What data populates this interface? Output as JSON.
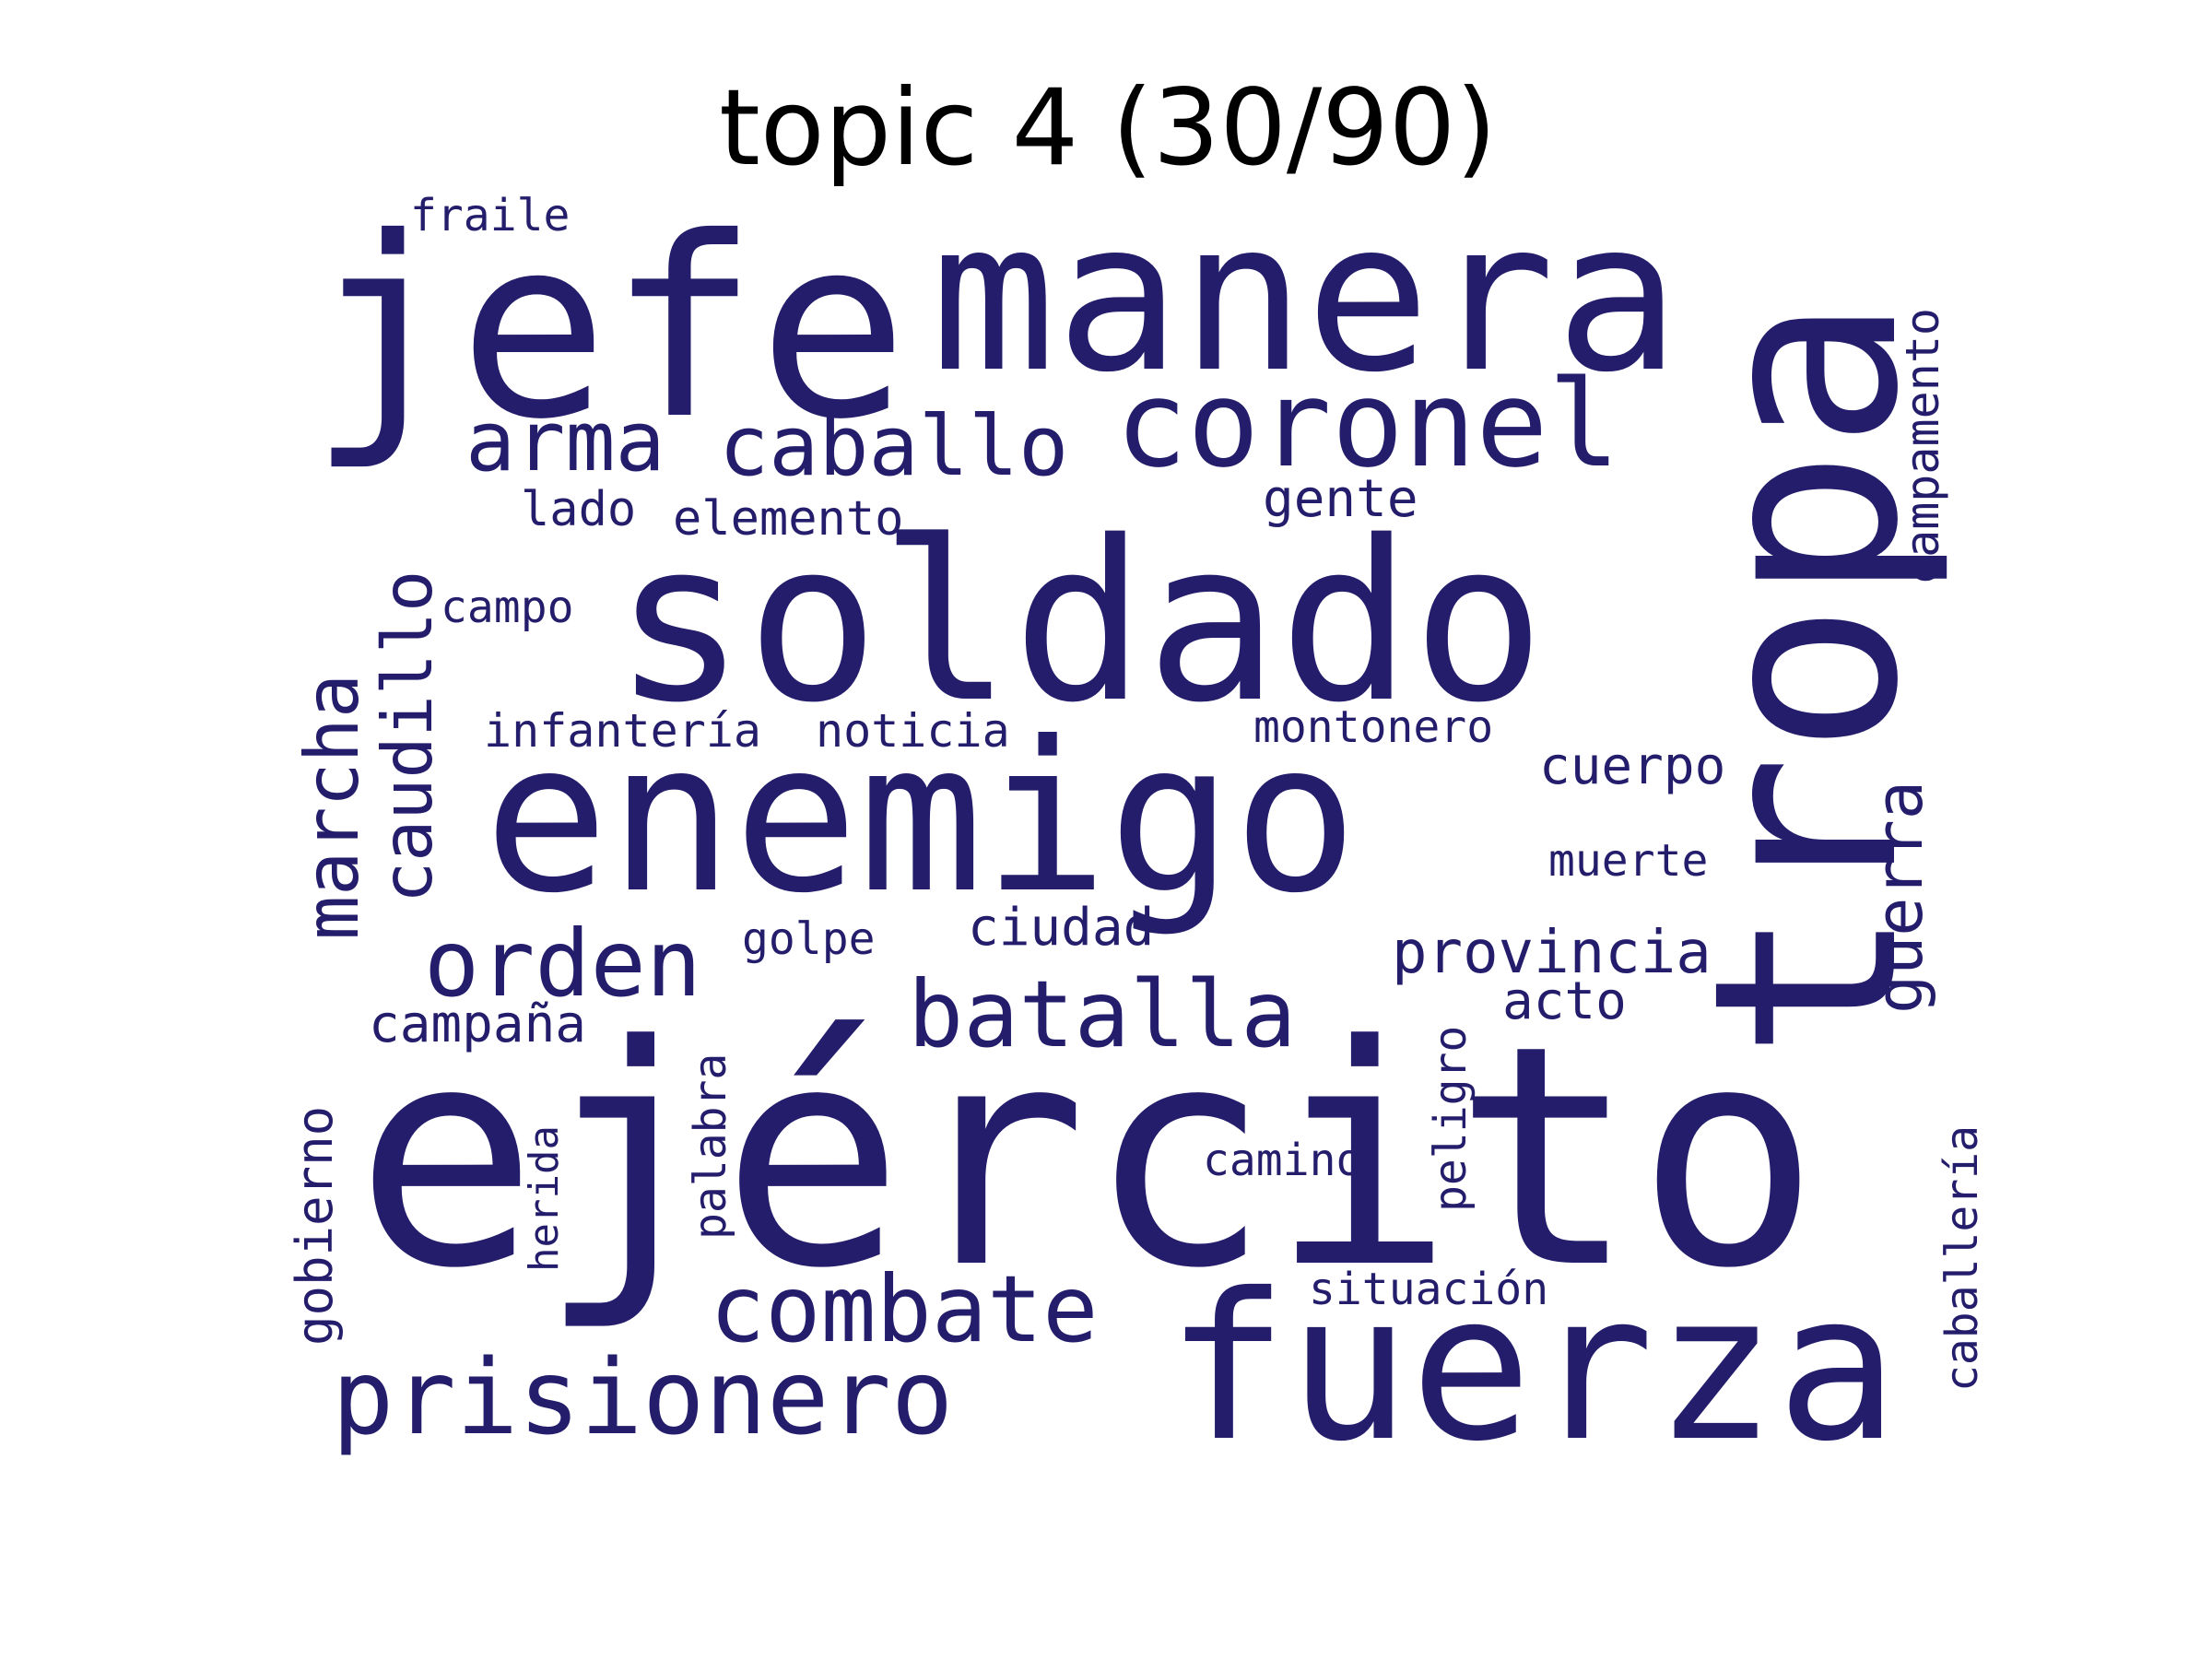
{
  "title": "topic 4 (30/90)",
  "word_color": "#231d6b",
  "words": [
    {
      "text": "ejército",
      "vertical": false
    },
    {
      "text": "soldado",
      "vertical": false
    },
    {
      "text": "enemigo",
      "vertical": false
    },
    {
      "text": "manera",
      "vertical": false
    },
    {
      "text": "jefe",
      "vertical": false
    },
    {
      "text": "tropa",
      "vertical": true
    },
    {
      "text": "fuerza",
      "vertical": false
    },
    {
      "text": "coronel",
      "vertical": false
    },
    {
      "text": "prisionero",
      "vertical": false
    },
    {
      "text": "combate",
      "vertical": false
    },
    {
      "text": "batalla",
      "vertical": false
    },
    {
      "text": "orden",
      "vertical": false
    },
    {
      "text": "marcha",
      "vertical": true
    },
    {
      "text": "caudillo",
      "vertical": true
    },
    {
      "text": "caballo",
      "vertical": false
    },
    {
      "text": "arma",
      "vertical": false
    },
    {
      "text": "guerra",
      "vertical": true
    },
    {
      "text": "provincia",
      "vertical": false
    },
    {
      "text": "campamento",
      "vertical": true
    },
    {
      "text": "gente",
      "vertical": false
    },
    {
      "text": "ciudad",
      "vertical": false
    },
    {
      "text": "acto",
      "vertical": false
    },
    {
      "text": "cuerpo",
      "vertical": false
    },
    {
      "text": "campaña",
      "vertical": false
    },
    {
      "text": "caballería",
      "vertical": true
    },
    {
      "text": "gobierno",
      "vertical": true
    },
    {
      "text": "elemento",
      "vertical": false
    },
    {
      "text": "lado",
      "vertical": false
    },
    {
      "text": "situación",
      "vertical": false
    },
    {
      "text": "noticia",
      "vertical": false
    },
    {
      "text": "infantería",
      "vertical": false
    },
    {
      "text": "montonero",
      "vertical": false
    },
    {
      "text": "palabra",
      "vertical": true
    },
    {
      "text": "peligro",
      "vertical": true
    },
    {
      "text": "camino",
      "vertical": false
    },
    {
      "text": "golpe",
      "vertical": false
    },
    {
      "text": "muerte",
      "vertical": false
    },
    {
      "text": "herida",
      "vertical": true
    },
    {
      "text": "fraile",
      "vertical": false
    },
    {
      "text": "campo",
      "vertical": false
    }
  ]
}
